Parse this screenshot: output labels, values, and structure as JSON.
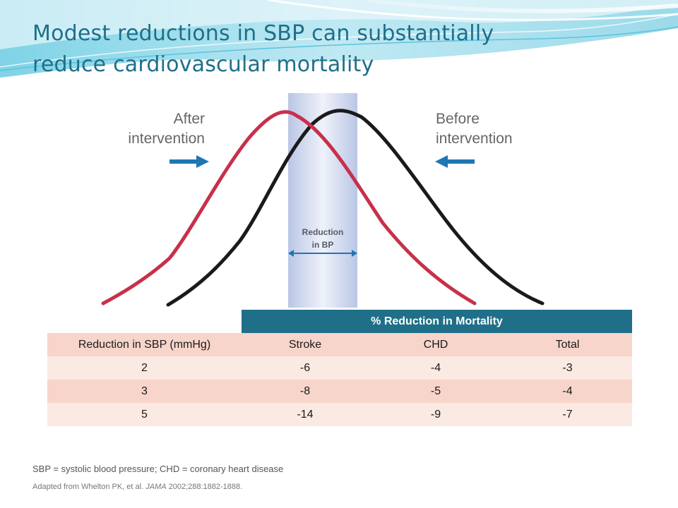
{
  "slide": {
    "title_line1": "Modest reductions in SBP can substantially",
    "title_line2": "reduce cardiovascular mortality",
    "colors": {
      "title": "#1e6f8a",
      "after_curve": "#c8304a",
      "before_curve": "#1a1a1a",
      "arrow": "#1f76b4",
      "band": "#c6cfe8",
      "table_header": "#1f6f88",
      "row_dark": "#f7d5ca",
      "row_light": "#fbe9e3"
    }
  },
  "figure": {
    "after_label_line1": "After",
    "after_label_line2": "intervention",
    "before_label_line1": "Before",
    "before_label_line2": "intervention",
    "band_label_line1": "Reduction",
    "band_label_line2": "in BP",
    "icons": [
      "arrow-right-icon",
      "arrow-left-icon",
      "double-arrow-icon"
    ]
  },
  "table": {
    "group_header": "% Reduction in Mortality",
    "columns": [
      "Reduction in SBP (mmHg)",
      "Stroke",
      "CHD",
      "Total"
    ],
    "rows": [
      [
        "2",
        "-6",
        "-4",
        "-3"
      ],
      [
        "3",
        "-8",
        "-5",
        "-4"
      ],
      [
        "5",
        "-14",
        "-9",
        "-7"
      ]
    ]
  },
  "footer": {
    "footnote": "SBP = systolic blood pressure; CHD = coronary heart disease",
    "source_prefix": "Adapted from Whelton PK, et al. ",
    "source_journal": "JAMA",
    "source_suffix": " 2002;288:1882-1888."
  }
}
